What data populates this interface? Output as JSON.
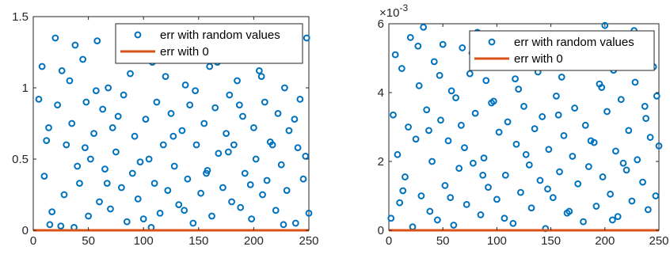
{
  "chart_data": [
    {
      "type": "scatter",
      "title": "",
      "xlabel": "",
      "ylabel": "",
      "xlim": [
        0,
        250
      ],
      "ylim": [
        0,
        1.5
      ],
      "xticks": [
        "0",
        "50",
        "100",
        "150",
        "200",
        "250"
      ],
      "yticks": [
        "0",
        "0.5",
        "1",
        "1.5"
      ],
      "exponent_label": "",
      "grid": false,
      "legend_position": "top-right",
      "series": [
        {
          "name": "err with random values",
          "style": "circle-markers",
          "color": "#0072BD",
          "points": [
            [
              5,
              0.92
            ],
            [
              8,
              1.15
            ],
            [
              10,
              0.38
            ],
            [
              12,
              0.63
            ],
            [
              15,
              0.04
            ],
            [
              17,
              0.13
            ],
            [
              20,
              1.35
            ],
            [
              22,
              0.88
            ],
            [
              25,
              0.03
            ],
            [
              28,
              0.25
            ],
            [
              30,
              0.6
            ],
            [
              33,
              1.05
            ],
            [
              35,
              0.75
            ],
            [
              38,
              1.3
            ],
            [
              40,
              0.45
            ],
            [
              42,
              0.33
            ],
            [
              45,
              1.2
            ],
            [
              48,
              0.9
            ],
            [
              50,
              0.1
            ],
            [
              52,
              0.5
            ],
            [
              55,
              0.68
            ],
            [
              58,
              1.33
            ],
            [
              60,
              0.2
            ],
            [
              63,
              0.85
            ],
            [
              65,
              0.43
            ],
            [
              68,
              1.0
            ],
            [
              70,
              0.15
            ],
            [
              72,
              0.72
            ],
            [
              75,
              0.55
            ],
            [
              78,
              1.25
            ],
            [
              80,
              0.3
            ],
            [
              82,
              0.95
            ],
            [
              85,
              0.06
            ],
            [
              88,
              1.1
            ],
            [
              90,
              0.4
            ],
            [
              92,
              0.66
            ],
            [
              95,
              0.22
            ],
            [
              98,
              1.3
            ],
            [
              100,
              0.08
            ],
            [
              102,
              0.78
            ],
            [
              105,
              0.5
            ],
            [
              108,
              1.18
            ],
            [
              110,
              0.33
            ],
            [
              112,
              0.9
            ],
            [
              115,
              0.12
            ],
            [
              118,
              0.6
            ],
            [
              120,
              1.08
            ],
            [
              122,
              0.28
            ],
            [
              125,
              0.82
            ],
            [
              128,
              0.45
            ],
            [
              130,
              1.28
            ],
            [
              132,
              0.18
            ],
            [
              135,
              0.7
            ],
            [
              138,
              1.02
            ],
            [
              140,
              0.36
            ],
            [
              142,
              0.88
            ],
            [
              145,
              0.05
            ],
            [
              148,
              0.6
            ],
            [
              150,
              1.22
            ],
            [
              152,
              0.26
            ],
            [
              155,
              0.75
            ],
            [
              158,
              0.42
            ],
            [
              160,
              1.15
            ],
            [
              162,
              0.1
            ],
            [
              165,
              0.86
            ],
            [
              168,
              0.54
            ],
            [
              170,
              1.32
            ],
            [
              172,
              0.3
            ],
            [
              175,
              0.68
            ],
            [
              178,
              0.95
            ],
            [
              180,
              0.2
            ],
            [
              182,
              0.6
            ],
            [
              185,
              1.05
            ],
            [
              188,
              0.16
            ],
            [
              190,
              0.8
            ],
            [
              192,
              0.4
            ],
            [
              195,
              1.25
            ],
            [
              198,
              0.08
            ],
            [
              200,
              0.72
            ],
            [
              202,
              0.5
            ],
            [
              205,
              1.12
            ],
            [
              208,
              0.25
            ],
            [
              210,
              0.9
            ],
            [
              212,
              0.35
            ],
            [
              215,
              0.62
            ],
            [
              218,
              1.3
            ],
            [
              220,
              0.14
            ],
            [
              222,
              0.82
            ],
            [
              225,
              0.46
            ],
            [
              228,
              1.0
            ],
            [
              230,
              0.28
            ],
            [
              232,
              0.7
            ],
            [
              235,
              1.2
            ],
            [
              238,
              0.05
            ],
            [
              240,
              0.58
            ],
            [
              242,
              0.92
            ],
            [
              245,
              0.36
            ],
            [
              248,
              1.35
            ],
            [
              250,
              0.12
            ],
            [
              14,
              0.72
            ],
            [
              26,
              1.12
            ],
            [
              37,
              0.02
            ],
            [
              47,
              0.58
            ],
            [
              57,
              0.98
            ],
            [
              67,
              0.33
            ],
            [
              77,
              0.8
            ],
            [
              87,
              1.22
            ],
            [
              97,
              0.48
            ],
            [
              107,
              0.02
            ],
            [
              117,
              1.3
            ],
            [
              127,
              0.66
            ],
            [
              137,
              0.14
            ],
            [
              147,
              0.98
            ],
            [
              157,
              0.4
            ],
            [
              167,
              1.18
            ],
            [
              177,
              0.55
            ],
            [
              187,
              0.88
            ],
            [
              197,
              0.32
            ],
            [
              207,
              1.08
            ],
            [
              217,
              0.6
            ],
            [
              227,
              0.04
            ],
            [
              237,
              0.78
            ],
            [
              247,
              0.52
            ]
          ]
        },
        {
          "name": "err with 0",
          "style": "line",
          "color": "#D95319",
          "points": [
            [
              0,
              0
            ],
            [
              250,
              0
            ]
          ]
        }
      ]
    },
    {
      "type": "scatter",
      "title": "",
      "xlabel": "",
      "ylabel": "",
      "xlim": [
        0,
        250
      ],
      "ylim": [
        0,
        6
      ],
      "xticks": [
        "0",
        "50",
        "100",
        "150",
        "200",
        "250"
      ],
      "yticks": [
        "0",
        "2",
        "4",
        "6"
      ],
      "exponent_label": "×10-3",
      "exponent_base": "×10",
      "exponent_power": "-3",
      "grid": false,
      "legend_position": "top-right",
      "series": [
        {
          "name": "err with random values",
          "style": "circle-markers",
          "color": "#0072BD",
          "points": [
            [
              2,
              0.35
            ],
            [
              4,
              3.35
            ],
            [
              6,
              5.1
            ],
            [
              8,
              2.2
            ],
            [
              10,
              0.8
            ],
            [
              12,
              4.7
            ],
            [
              15,
              1.55
            ],
            [
              18,
              3.0
            ],
            [
              20,
              5.6
            ],
            [
              22,
              0.1
            ],
            [
              25,
              2.65
            ],
            [
              28,
              4.2
            ],
            [
              30,
              1.0
            ],
            [
              32,
              5.9
            ],
            [
              35,
              3.5
            ],
            [
              38,
              0.55
            ],
            [
              40,
              2.0
            ],
            [
              42,
              4.9
            ],
            [
              45,
              0.3
            ],
            [
              48,
              3.2
            ],
            [
              50,
              5.4
            ],
            [
              52,
              1.3
            ],
            [
              55,
              2.6
            ],
            [
              58,
              4.05
            ],
            [
              60,
              0.15
            ],
            [
              62,
              3.85
            ],
            [
              65,
              1.8
            ],
            [
              68,
              5.3
            ],
            [
              70,
              2.4
            ],
            [
              72,
              0.75
            ],
            [
              75,
              4.55
            ],
            [
              78,
              1.95
            ],
            [
              80,
              3.4
            ],
            [
              82,
              5.75
            ],
            [
              85,
              0.45
            ],
            [
              88,
              2.1
            ],
            [
              90,
              4.35
            ],
            [
              92,
              1.25
            ],
            [
              95,
              3.7
            ],
            [
              98,
              5.05
            ],
            [
              100,
              0.9
            ],
            [
              102,
              2.85
            ],
            [
              105,
              4.8
            ],
            [
              108,
              1.6
            ],
            [
              110,
              3.15
            ],
            [
              112,
              5.55
            ],
            [
              115,
              0.2
            ],
            [
              118,
              2.5
            ],
            [
              120,
              4.1
            ],
            [
              122,
              1.1
            ],
            [
              125,
              3.6
            ],
            [
              128,
              5.25
            ],
            [
              130,
              1.9
            ],
            [
              132,
              0.65
            ],
            [
              135,
              2.95
            ],
            [
              138,
              4.6
            ],
            [
              140,
              1.45
            ],
            [
              142,
              3.3
            ],
            [
              145,
              0.05
            ],
            [
              148,
              2.35
            ],
            [
              150,
              5.65
            ],
            [
              152,
              0.95
            ],
            [
              155,
              3.9
            ],
            [
              158,
              1.7
            ],
            [
              160,
              4.45
            ],
            [
              162,
              2.75
            ],
            [
              165,
              0.5
            ],
            [
              168,
              5.2
            ],
            [
              170,
              2.15
            ],
            [
              172,
              3.55
            ],
            [
              175,
              1.35
            ],
            [
              178,
              4.95
            ],
            [
              180,
              0.25
            ],
            [
              182,
              3.05
            ],
            [
              185,
              1.85
            ],
            [
              188,
              5.45
            ],
            [
              190,
              2.55
            ],
            [
              192,
              0.7
            ],
            [
              195,
              4.25
            ],
            [
              198,
              1.55
            ],
            [
              200,
              5.95
            ],
            [
              202,
              3.45
            ],
            [
              205,
              1.05
            ],
            [
              208,
              4.65
            ],
            [
              210,
              2.3
            ],
            [
              212,
              0.4
            ],
            [
              215,
              3.8
            ],
            [
              218,
              5.1
            ],
            [
              220,
              1.75
            ],
            [
              222,
              2.9
            ],
            [
              225,
              0.85
            ],
            [
              228,
              4.3
            ],
            [
              230,
              2.05
            ],
            [
              232,
              5.7
            ],
            [
              235,
              1.4
            ],
            [
              238,
              3.25
            ],
            [
              240,
              0.6
            ],
            [
              242,
              2.7
            ],
            [
              245,
              4.75
            ],
            [
              248,
              3.9
            ],
            [
              250,
              2.45
            ],
            [
              13,
              1.15
            ],
            [
              27,
              5.35
            ],
            [
              37,
              2.9
            ],
            [
              47,
              4.5
            ],
            [
              57,
              0.95
            ],
            [
              67,
              3.05
            ],
            [
              77,
              5.15
            ],
            [
              87,
              1.6
            ],
            [
              97,
              3.75
            ],
            [
              107,
              0.35
            ],
            [
              117,
              4.4
            ],
            [
              127,
              2.2
            ],
            [
              137,
              5.5
            ],
            [
              147,
              1.2
            ],
            [
              157,
              3.35
            ],
            [
              167,
              0.55
            ],
            [
              177,
              4.85
            ],
            [
              187,
              2.6
            ],
            [
              197,
              4.15
            ],
            [
              207,
              0.3
            ],
            [
              217,
              1.95
            ],
            [
              227,
              5.8
            ],
            [
              237,
              3.6
            ],
            [
              247,
              1.0
            ]
          ]
        },
        {
          "name": "err with 0",
          "style": "line",
          "color": "#D95319",
          "points": [
            [
              0,
              0
            ],
            [
              250,
              0
            ]
          ]
        }
      ]
    }
  ]
}
